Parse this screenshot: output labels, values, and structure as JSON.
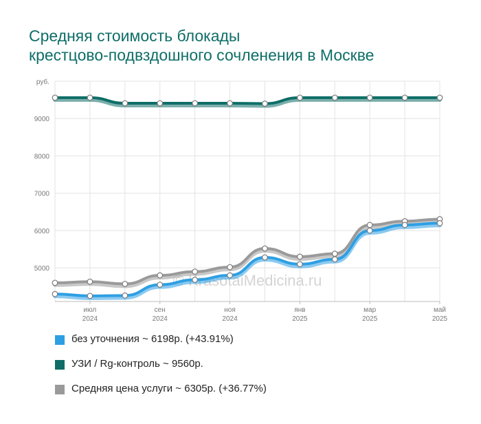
{
  "title_line1": "Средняя стоимость блокады",
  "title_line2": "крестцово-подвздошного сочленения в Москве",
  "watermark": "© KrasotaiMedicina.ru",
  "chart_data": {
    "type": "line",
    "y_unit": "руб.",
    "ylim": [
      4100,
      10000
    ],
    "yticks": [
      5000,
      6000,
      7000,
      8000,
      9000
    ],
    "x_count": 12,
    "x_ticks": [
      {
        "index": 1,
        "month": "июл",
        "year": "2024"
      },
      {
        "index": 3,
        "month": "сен",
        "year": "2024"
      },
      {
        "index": 5,
        "month": "ноя",
        "year": "2024"
      },
      {
        "index": 7,
        "month": "янв",
        "year": "2025"
      },
      {
        "index": 9,
        "month": "мар",
        "year": "2025"
      },
      {
        "index": 11,
        "month": "май",
        "year": "2025"
      }
    ],
    "grid": true,
    "legend_position": "bottom",
    "series": [
      {
        "name": "без уточнения ~ 6198р. (+43.91%)",
        "color": "#2e9fe3",
        "values": [
          4300,
          4250,
          4260,
          4550,
          4680,
          4800,
          5280,
          5100,
          5230,
          6000,
          6150,
          6198
        ]
      },
      {
        "name": "УЗИ / Rg-контроль ~ 9560р.",
        "color": "#0e6e67",
        "values": [
          9560,
          9560,
          9410,
          9410,
          9410,
          9410,
          9400,
          9560,
          9560,
          9560,
          9560,
          9560
        ]
      },
      {
        "name": "Средняя цена услуги ~ 6305р. (+36.77%)",
        "color": "#9a9a9a",
        "values": [
          4600,
          4630,
          4570,
          4800,
          4900,
          5020,
          5520,
          5300,
          5380,
          6150,
          6250,
          6305
        ]
      }
    ],
    "draw_order": [
      2,
      0,
      1
    ]
  }
}
